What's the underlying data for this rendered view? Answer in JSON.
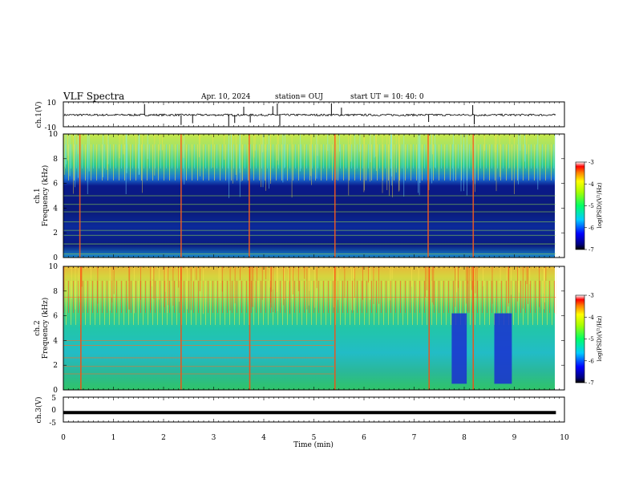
{
  "header": {
    "title": "VLF Spectra",
    "date": "Apr. 10, 2024",
    "station": "station= OUJ",
    "start": "start  UT  =  10: 40: 0"
  },
  "chart_data": [
    {
      "type": "line",
      "name": "ch1-waveform",
      "ylabel": "ch.1(V)",
      "ylim": [
        -10,
        10
      ],
      "yticks": [
        "10",
        "-10"
      ],
      "baseline": -0.5,
      "spikes_x": [
        1.62,
        2.35,
        2.58,
        3.3,
        3.42,
        3.6,
        3.73,
        4.18,
        4.27,
        4.32,
        5.35,
        5.55,
        7.29,
        8.17,
        8.2
      ]
    },
    {
      "type": "heatmap",
      "name": "ch1-spectrogram",
      "ylabel": "ch.1",
      "ylabel2": "Frequency  (kHz)",
      "ylim": [
        0,
        10
      ],
      "yticks": [
        "0",
        "2",
        "4",
        "6",
        "8",
        "10"
      ],
      "colorbar": {
        "label": "log(PSD)(V²/Hz)",
        "ticks": [
          "-3",
          "-4",
          "-5",
          "-6",
          "-7"
        ]
      },
      "impulses_x": [
        0.33,
        2.35,
        3.71,
        5.42,
        7.28,
        8.18
      ],
      "tones_khz": [
        0.3,
        1.1,
        1.8,
        2.2,
        2.9,
        3.7,
        4.3,
        5.0
      ]
    },
    {
      "type": "heatmap",
      "name": "ch2-spectrogram",
      "ylabel": "ch.2",
      "ylabel2": "Frequency  (kHz)",
      "ylim": [
        0,
        10
      ],
      "yticks": [
        "0",
        "2",
        "4",
        "6",
        "8",
        "10"
      ],
      "colorbar": {
        "label": "log(PSD)(V²/Hz)",
        "ticks": [
          "-3",
          "-4",
          "-5",
          "-6",
          "-7"
        ]
      },
      "impulses_x": [
        0.35,
        2.35,
        3.72,
        5.42,
        7.3,
        8.18
      ],
      "tones_khz": [
        1.3,
        1.9,
        2.6,
        3.6,
        4.0,
        7.5
      ],
      "dropouts_x": [
        [
          7.75,
          8.05
        ],
        [
          8.6,
          8.95
        ]
      ]
    },
    {
      "type": "line",
      "name": "ch3-waveform",
      "ylabel": "ch.3(V)",
      "ylim": [
        -5,
        5
      ],
      "yticks": [
        "5",
        "0",
        "-5"
      ],
      "level": -1.2
    }
  ],
  "xaxis": {
    "label": "Time  (min)",
    "xlim": [
      0,
      10
    ],
    "ticks": [
      "0",
      "1",
      "2",
      "3",
      "4",
      "5",
      "6",
      "7",
      "8",
      "9",
      "10"
    ],
    "data_end": 9.83
  }
}
